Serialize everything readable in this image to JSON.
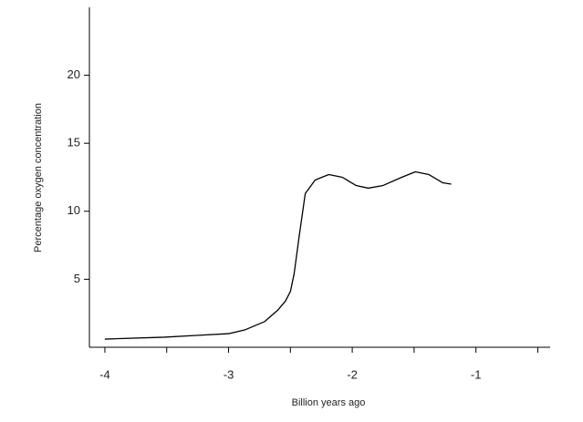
{
  "chart_data": {
    "type": "line",
    "x_label": "Billion years ago",
    "y_label": "Percentage oxygen concentration",
    "x": [
      -4,
      -3.52,
      -3.26,
      -3.0,
      -2.87,
      -2.71,
      -2.6,
      -2.54,
      -2.5,
      -2.47,
      -2.43,
      -2.38,
      -2.3,
      -2.19,
      -2.08,
      -1.97,
      -1.87,
      -1.75,
      -1.6,
      -1.49,
      -1.38,
      -1.27,
      -1.2
    ],
    "series": [
      {
        "color": "#000000",
        "values": [
          0.6,
          0.74,
          0.87,
          1.0,
          1.27,
          1.88,
          2.75,
          3.4,
          4.1,
          5.4,
          8.1,
          11.3,
          12.3,
          12.7,
          12.5,
          11.9,
          11.7,
          11.9,
          12.5,
          12.9,
          12.7,
          12.1,
          12.0
        ]
      }
    ],
    "xlim": [
      -4.125,
      -0.4
    ],
    "xticks": [
      -4,
      -3,
      -2,
      -1
    ],
    "xminorticks": [
      -3.5,
      -2.5,
      -1.5,
      -0.5
    ],
    "ylim": [
      0,
      25
    ],
    "yticks": [
      5,
      10,
      15,
      20
    ]
  }
}
